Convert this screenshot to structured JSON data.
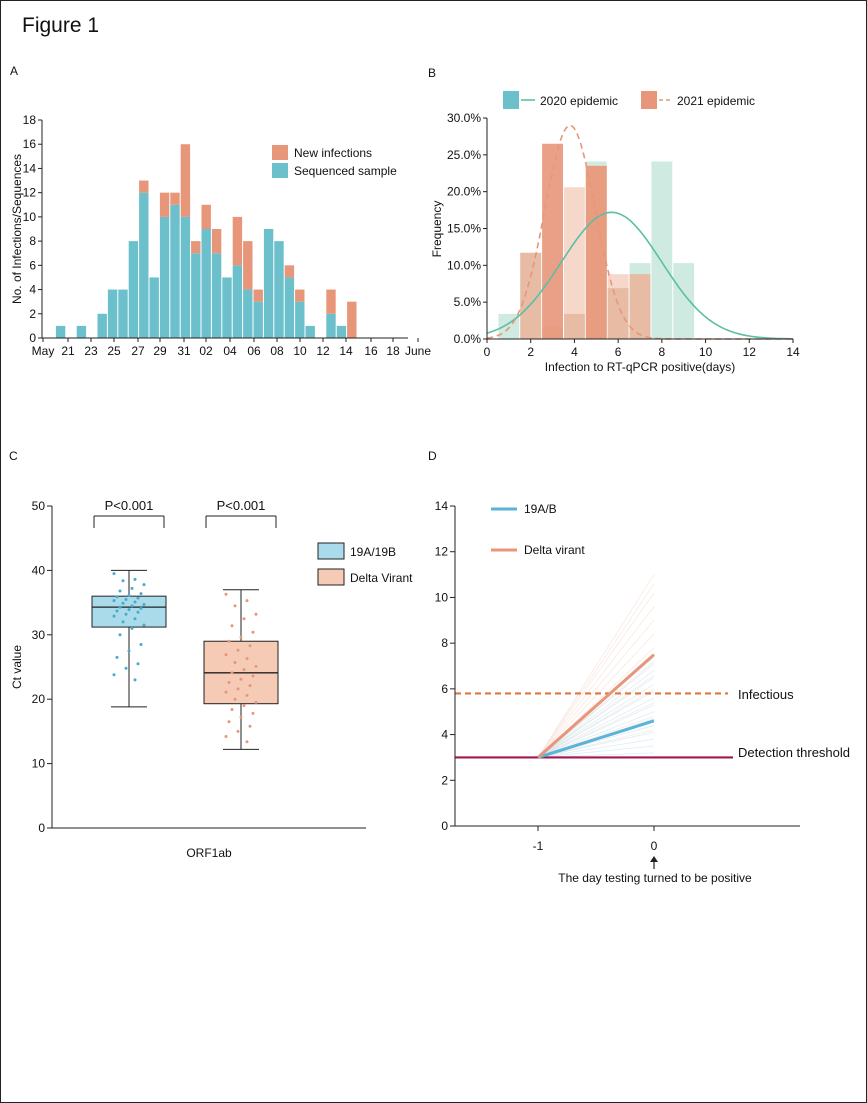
{
  "figure_title": "Figure 1",
  "colors": {
    "teal": "#6cc0cc",
    "salmon": "#e8967a",
    "greenLine": "#5bbfa5",
    "lightGreen": "#bfe3d6",
    "lightSalmon": "#f2c8b4",
    "blue": "#5cb3d8",
    "boxBlue": "#a9dbeb",
    "boxSalmon": "#f6cbb6",
    "orange": "#e2763d",
    "magenta": "#a3174f",
    "axis": "#222222"
  },
  "chart_data": [
    {
      "panel": "A",
      "type": "bar",
      "stacked": true,
      "ylabel": "No. of Infections/Sequences",
      "ylim": [
        0,
        18
      ],
      "yticks": [
        0,
        2,
        4,
        6,
        8,
        10,
        12,
        14,
        16,
        18
      ],
      "days": 29,
      "xticklabels": [
        "May",
        "21",
        "23",
        "25",
        "27",
        "29",
        "31",
        "02",
        "04",
        "06",
        "08",
        "10",
        "12",
        "14",
        "16",
        "18",
        "June"
      ],
      "series": [
        {
          "name": "Sequenced sample",
          "color": "#6cc0cc",
          "values": [
            0,
            1,
            0,
            1,
            0,
            2,
            4,
            4,
            8,
            12,
            5,
            10,
            11,
            10,
            7,
            9,
            7,
            5,
            6,
            4,
            3,
            9,
            8,
            5,
            3,
            1,
            0,
            2,
            1,
            0
          ]
        },
        {
          "name": "New infections",
          "color": "#e8967a",
          "values": [
            0,
            0,
            0,
            0,
            0,
            0,
            0,
            0,
            0,
            1,
            0,
            2,
            1,
            6,
            1,
            2,
            2,
            0,
            4,
            4,
            1,
            0,
            0,
            1,
            1,
            0,
            0,
            2,
            0,
            3
          ]
        }
      ]
    },
    {
      "panel": "B",
      "type": "bar",
      "xlabel": "Infection to RT-qPCR positive(days)",
      "ylabel": "Frequency",
      "xlim": [
        0,
        14
      ],
      "ylim": [
        0,
        30
      ],
      "yticklabels": [
        "0.0%",
        "5.0%",
        "10.0%",
        "15.0%",
        "20.0%",
        "25.0%",
        "30.0%"
      ],
      "xticks": [
        0,
        2,
        4,
        6,
        8,
        10,
        12,
        14
      ],
      "series": [
        {
          "name": "2020 epidemic",
          "color": "#bfe3d6",
          "curve_color": "#5bbfa5",
          "bars": [
            [
              1,
              3.4
            ],
            [
              2,
              11.7
            ],
            [
              3,
              1.7
            ],
            [
              4,
              3.4
            ],
            [
              5,
              24.1
            ],
            [
              6,
              6.9
            ],
            [
              7,
              10.3
            ],
            [
              8,
              24.1
            ],
            [
              9,
              10.3
            ]
          ],
          "curve": {
            "mean": 5.7,
            "sd": 2.3,
            "peak": 17.2
          }
        },
        {
          "name": "2021 epidemic",
          "color": "#f2c8b4",
          "curve_color": "#e8967a",
          "bars": [
            [
              2,
              11.7
            ],
            [
              3,
              26.5
            ],
            [
              4,
              20.6
            ],
            [
              5,
              23.5
            ],
            [
              6,
              8.8
            ],
            [
              7,
              8.8
            ]
          ],
          "curve": {
            "mean": 3.8,
            "sd": 1.15,
            "peak": 29.0
          }
        }
      ]
    },
    {
      "panel": "C",
      "type": "box",
      "ylabel": "Ct value",
      "xlabel": "ORF1ab",
      "ylim": [
        0,
        50
      ],
      "yticks": [
        0,
        10,
        20,
        30,
        40,
        50
      ],
      "groups": [
        {
          "name": "19A/19B",
          "fill": "#a9dbeb",
          "dot": "#4aa9cf",
          "min": 18.8,
          "q1": 31.2,
          "median": 34.3,
          "q3": 36.0,
          "max": 40.0,
          "p_label": "P<0.001",
          "points": [
            39.5,
            38.6,
            38.4,
            37.8,
            37.2,
            36.8,
            36.4,
            36.1,
            35.9,
            35.7,
            35.5,
            35.3,
            35.1,
            34.9,
            34.7,
            34.5,
            34.3,
            34.1,
            33.9,
            33.7,
            33.5,
            33.2,
            32.9,
            32.5,
            32.0,
            31.5,
            31.0,
            30.0,
            28.5,
            27.5,
            26.5,
            25.5,
            24.8,
            23.8,
            23.0
          ]
        },
        {
          "name": "Delta Virant",
          "fill": "#f6cbb6",
          "dot": "#e8967a",
          "min": 12.2,
          "q1": 19.3,
          "median": 24.1,
          "q3": 29.0,
          "max": 37.0,
          "p_label": "P<0.001",
          "points": [
            36.3,
            35.3,
            34.5,
            33.2,
            32.5,
            31.4,
            30.4,
            29.6,
            29.0,
            28.3,
            27.6,
            26.9,
            26.3,
            25.7,
            25.1,
            24.6,
            24.1,
            23.6,
            23.1,
            22.6,
            22.1,
            21.6,
            21.1,
            20.6,
            20.0,
            19.5,
            19.0,
            18.4,
            17.8,
            17.2,
            16.5,
            15.8,
            15.0,
            14.2,
            13.4
          ]
        }
      ]
    },
    {
      "panel": "D",
      "type": "line",
      "ylim": [
        0,
        14
      ],
      "yticks": [
        0,
        2,
        4,
        6,
        8,
        10,
        12,
        14
      ],
      "x_ticks": [
        "-1",
        "0"
      ],
      "annotation": "The day testing turned to be positive",
      "start": 3.0,
      "series": [
        {
          "name": "19A/B",
          "color": "#5cb3d8",
          "end": 4.6,
          "spread": [
            3.2,
            3.5,
            3.8,
            4.1,
            4.4,
            4.7,
            5.0,
            5.3,
            5.6,
            5.9,
            6.2,
            6.5,
            6.8,
            7.1,
            7.4
          ]
        },
        {
          "name": "Delta virant",
          "color": "#e8967a",
          "end": 7.5,
          "spread": [
            4.2,
            4.8,
            5.4,
            6.0,
            6.6,
            7.2,
            7.8,
            8.4,
            9.0,
            9.6,
            10.2,
            10.6,
            11.0
          ]
        }
      ],
      "thresholds": [
        {
          "name": "Infectious",
          "value": 5.8,
          "color": "#e2763d",
          "dashed": true
        },
        {
          "name": "Detection threshold",
          "value": 3.0,
          "color": "#a3174f",
          "dashed": false
        }
      ]
    }
  ]
}
